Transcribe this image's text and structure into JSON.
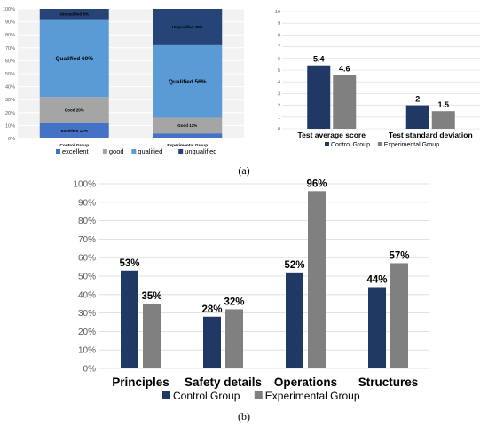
{
  "chart_data": [
    {
      "type": "bar",
      "stacked": true,
      "percent": true,
      "categories": [
        "Control Group",
        "Experimental Group"
      ],
      "series": [
        {
          "name": "excellent",
          "values": [
            12,
            4
          ],
          "color": "#4472c4"
        },
        {
          "name": "good",
          "values": [
            20,
            12
          ],
          "color": "#a5a5a5"
        },
        {
          "name": "qualified",
          "values": [
            60,
            56
          ],
          "color": "#5b9bd5"
        },
        {
          "name": "unqualified",
          "values": [
            8,
            28
          ],
          "color": "#264478"
        }
      ],
      "segment_labels": [
        [
          "Excellent 12%",
          "Good 20%",
          "Qualified 60%",
          "Unqualified 8%"
        ],
        [
          "",
          "Good 12%",
          "Qualified 56%",
          "Unqualified 28%"
        ]
      ],
      "yticks": [
        "0%",
        "10%",
        "20%",
        "30%",
        "40%",
        "50%",
        "60%",
        "70%",
        "80%",
        "90%",
        "100%"
      ],
      "ylim": [
        0,
        100
      ],
      "legend": "bottom"
    },
    {
      "type": "bar",
      "categories": [
        "Test average score",
        "Test standard deviation"
      ],
      "series": [
        {
          "name": "Control Group",
          "values": [
            5.4,
            2
          ],
          "labels": [
            "5.4",
            "2"
          ],
          "color": "#203864"
        },
        {
          "name": "Experimental Group",
          "values": [
            4.6,
            1.5
          ],
          "labels": [
            "4.6",
            "1.5"
          ],
          "color": "#808080"
        }
      ],
      "yticks": [
        "0",
        "1",
        "2",
        "3",
        "4",
        "5",
        "6",
        "7",
        "8",
        "9",
        "10"
      ],
      "ylim": [
        0,
        10
      ],
      "legend": "bottom"
    },
    {
      "type": "bar",
      "categories": [
        "Principles",
        "Safety details",
        "Operations",
        "Structures"
      ],
      "series": [
        {
          "name": "Control Group",
          "values": [
            53,
            28,
            52,
            44
          ],
          "labels": [
            "53%",
            "28%",
            "52%",
            "44%"
          ],
          "color": "#203864"
        },
        {
          "name": "Experimental Group",
          "values": [
            35,
            32,
            96,
            57
          ],
          "labels": [
            "35%",
            "32%",
            "96%",
            "57%"
          ],
          "color": "#808080"
        }
      ],
      "yticks": [
        "0%",
        "10%",
        "20%",
        "30%",
        "40%",
        "50%",
        "60%",
        "70%",
        "80%",
        "90%",
        "100%"
      ],
      "ylim": [
        0,
        100
      ],
      "legend": "bottom"
    }
  ],
  "panel_labels": {
    "a": "(a)",
    "b": "(b)"
  }
}
